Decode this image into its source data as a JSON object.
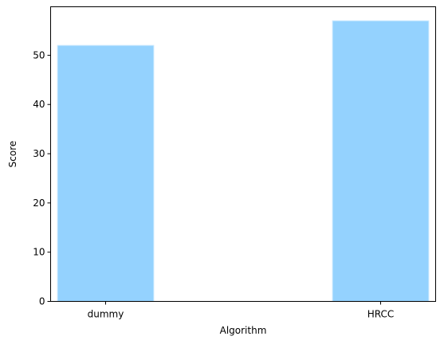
{
  "chart_data": {
    "type": "bar",
    "categories": [
      "dummy",
      "HRCC"
    ],
    "values": [
      52,
      57
    ],
    "xlabel": "Algorithm",
    "ylabel": "Score",
    "ylim": [
      0,
      59.85
    ],
    "yticks": [
      0,
      10,
      20,
      30,
      40,
      50
    ],
    "grid": false,
    "bar_color": "#94d2fe",
    "bar_edge_color": "#c9e8ff"
  }
}
